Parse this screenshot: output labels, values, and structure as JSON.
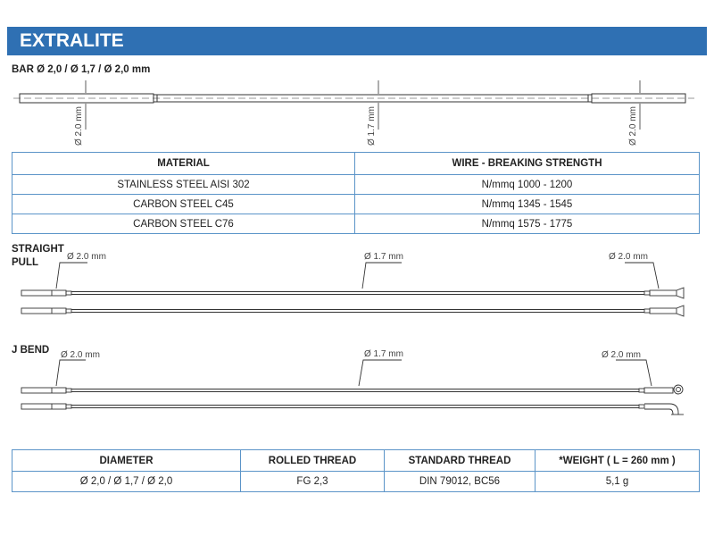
{
  "title": "EXTRALITE",
  "bar": {
    "label": "BAR Ø 2,0 / Ø 1,7 / Ø 2,0  mm",
    "dims": [
      "Ø 2.0 mm",
      "Ø 1.7 mm",
      "Ø 2.0 mm"
    ]
  },
  "material_table": {
    "headers": [
      "MATERIAL",
      "WIRE - BREAKING STRENGTH"
    ],
    "rows": [
      [
        "STAINLESS STEEL AISI 302",
        "N/mmq 1000 - 1200"
      ],
      [
        "CARBON STEEL C45",
        "N/mmq 1345 - 1545"
      ],
      [
        "CARBON STEEL C76",
        "N/mmq 1575 - 1775"
      ]
    ]
  },
  "straight_pull": {
    "label_line1": "STRAIGHT",
    "label_line2": "PULL",
    "dims": [
      "Ø 2.0 mm",
      "Ø 1.7 mm",
      "Ø 2.0 mm"
    ]
  },
  "j_bend": {
    "label": "J BEND",
    "dims": [
      "Ø 2.0 mm",
      "Ø 1.7 mm",
      "Ø 2.0 mm"
    ]
  },
  "spec_table": {
    "headers": [
      "DIAMETER",
      "ROLLED THREAD",
      "STANDARD THREAD",
      "*WEIGHT ( L = 260 mm )"
    ],
    "row": [
      "Ø 2,0 / Ø 1,7 / Ø 2,0",
      "FG 2,3",
      "DIN 79012, BC56",
      "5,1 g"
    ]
  },
  "colors": {
    "banner": "#2f70b3",
    "table_border": "#5b94c8"
  }
}
